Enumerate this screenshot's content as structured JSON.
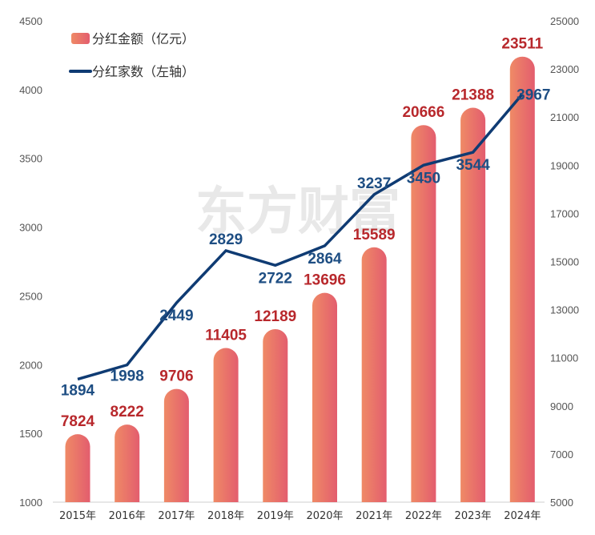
{
  "chart_data": {
    "type": "bar",
    "categories": [
      "2015年",
      "2016年",
      "2017年",
      "2018年",
      "2019年",
      "2020年",
      "2021年",
      "2022年",
      "2023年",
      "2024年"
    ],
    "series": [
      {
        "name": "分红金额（亿元）",
        "type": "bar",
        "axis": "right",
        "values": [
          7824,
          8222,
          9706,
          11405,
          12189,
          13696,
          15589,
          20666,
          21388,
          23511
        ]
      },
      {
        "name": "分红家数（左轴）",
        "type": "line",
        "axis": "left",
        "values": [
          1894,
          1998,
          2449,
          2829,
          2722,
          2864,
          3237,
          3450,
          3544,
          3967
        ]
      }
    ],
    "left_axis": {
      "ylim": [
        1000,
        4500
      ],
      "ticks": [
        "1000",
        "1500",
        "2000",
        "2500",
        "3000",
        "3500",
        "4000",
        "4500"
      ]
    },
    "right_axis": {
      "ylim": [
        5000,
        25000
      ],
      "ticks": [
        "5000",
        "7000",
        "9000",
        "11000",
        "13000",
        "15000",
        "17000",
        "19000",
        "21000",
        "23000",
        "25000"
      ]
    },
    "legend_position": "top-left",
    "grid": false,
    "watermark": "东方财富",
    "colors": {
      "bar_start": "#ef8a66",
      "bar_end": "#e35d6e",
      "line": "#0f3b73",
      "bar_label": "#b8282c",
      "line_label": "#1e4e83"
    }
  }
}
